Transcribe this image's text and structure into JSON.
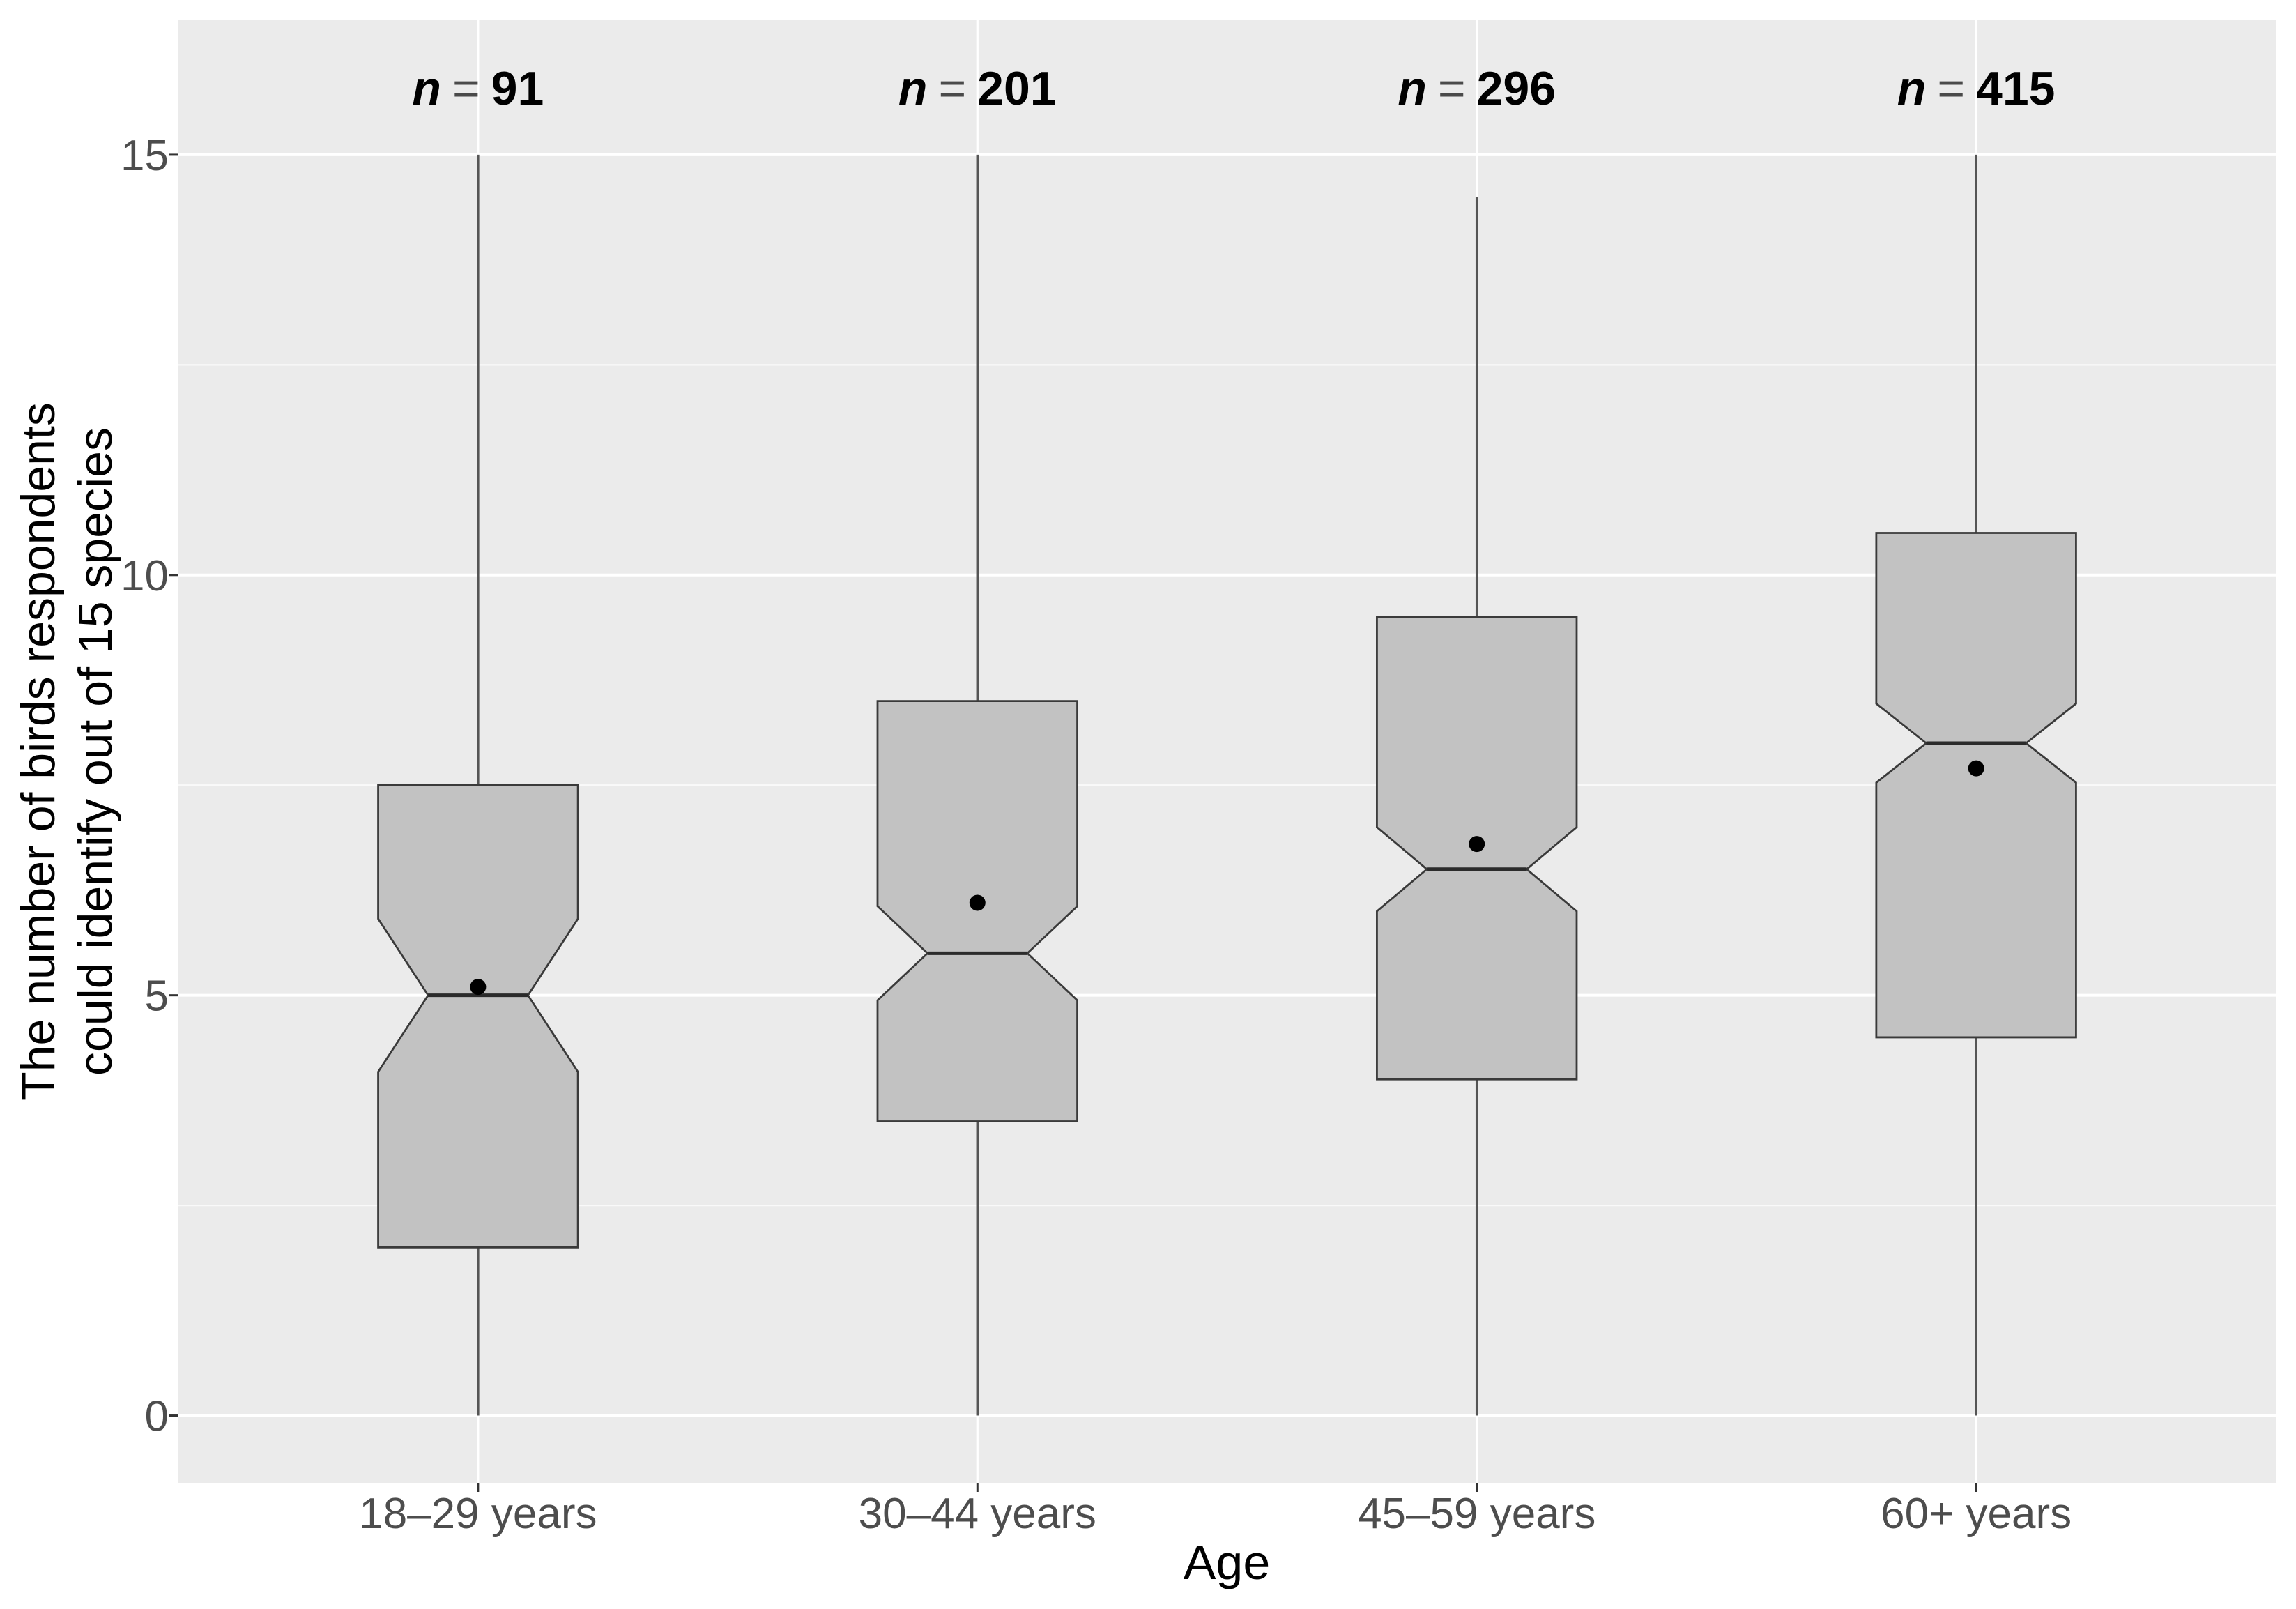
{
  "chart_data": {
    "type": "boxplot",
    "variant": "notched-boxplot-with-means",
    "title": "",
    "xlabel": "Age",
    "ylabel_lines": [
      "The number of birds respondents",
      "could identify out of 15 species"
    ],
    "y_ticks": [
      0,
      5,
      10,
      15
    ],
    "y_minor_gridlines": [
      2.5,
      7.5,
      12.5
    ],
    "ylim": [
      -0.8,
      16.6
    ],
    "grid": "white major and minor gridlines on grey panel",
    "legend_position": "none",
    "n_label_prefix": "n",
    "n_label_equals": "=",
    "categories": [
      "18–29 years",
      "30–44 years",
      "45–59 years",
      "60+ years"
    ],
    "series": [
      {
        "category": "18–29 years",
        "n": 91,
        "whisker_low": 0,
        "q1": 2.0,
        "median": 5.0,
        "q3": 7.5,
        "whisker_high": 15,
        "notch_low": 4.09,
        "notch_high": 5.91,
        "mean": 5.1
      },
      {
        "category": "30–44 years",
        "n": 201,
        "whisker_low": 0,
        "q1": 3.5,
        "median": 5.5,
        "q3": 8.5,
        "whisker_high": 15,
        "notch_low": 4.94,
        "notch_high": 6.06,
        "mean": 6.1
      },
      {
        "category": "45–59 years",
        "n": 296,
        "whisker_low": 0,
        "q1": 4.0,
        "median": 6.5,
        "q3": 9.5,
        "whisker_high": 14.5,
        "notch_low": 6.0,
        "notch_high": 7.0,
        "mean": 6.8
      },
      {
        "category": "60+ years",
        "n": 415,
        "whisker_low": 0,
        "q1": 4.5,
        "median": 8.0,
        "q3": 10.5,
        "whisker_high": 15,
        "notch_low": 7.53,
        "notch_high": 8.47,
        "mean": 7.7
      }
    ],
    "colors": {
      "figure_background": "#FFFFFF",
      "panel_background": "#EBEBEB",
      "box_fill": "#C2C2C2",
      "box_stroke": "#3A3A3A",
      "whisker": "#555555",
      "median": "#2B2B2B",
      "mean_dot": "#000000",
      "grid_major": "#FFFFFF",
      "grid_minor": "#FFFFFF",
      "axis_tick": "#333333",
      "tick_label": "#4D4D4D",
      "axis_title": "#000000",
      "n_label": "#000000",
      "n_label_equals_color": "#4A4A4A"
    }
  }
}
